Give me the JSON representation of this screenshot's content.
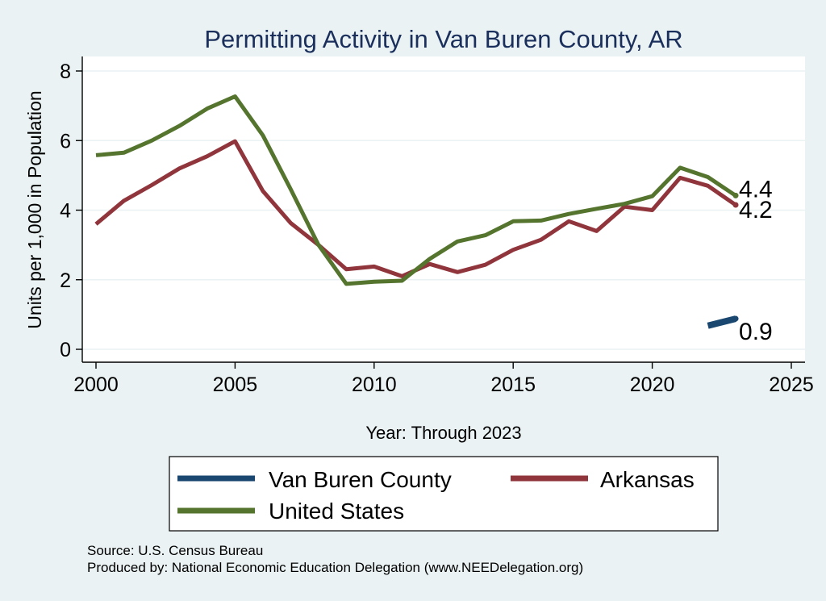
{
  "colors": {
    "background": "#eaf2f3",
    "plot_background": "#ffffff",
    "grid": "#eaf2f3",
    "title": "#1a2f5c",
    "text": "#000000",
    "county": "#1a476f",
    "arkansas": "#90353b",
    "us": "#55752f"
  },
  "chart_data": {
    "type": "line",
    "title": "Permitting Activity in Van Buren County, AR",
    "xlabel": "Year: Through 2023",
    "ylabel": "Units per 1,000 in Population",
    "xlim": [
      2000,
      2025
    ],
    "ylim": [
      0,
      8
    ],
    "xticks": [
      2000,
      2005,
      2010,
      2015,
      2020,
      2025
    ],
    "yticks": [
      0,
      2,
      4,
      6,
      8
    ],
    "grid": true,
    "series": [
      {
        "name": "Van Buren County",
        "color_key": "county",
        "x": [
          2022,
          2023
        ],
        "values": [
          0.68,
          0.88
        ],
        "end_label": "0.9"
      },
      {
        "name": "Arkansas",
        "color_key": "arkansas",
        "x": [
          2000,
          2001,
          2002,
          2003,
          2004,
          2005,
          2006,
          2007,
          2008,
          2009,
          2010,
          2011,
          2012,
          2013,
          2014,
          2015,
          2016,
          2017,
          2018,
          2019,
          2020,
          2021,
          2022,
          2023
        ],
        "values": [
          3.6,
          4.27,
          4.72,
          5.2,
          5.55,
          5.98,
          4.55,
          3.63,
          3.0,
          2.3,
          2.38,
          2.1,
          2.45,
          2.22,
          2.43,
          2.86,
          3.15,
          3.68,
          3.4,
          4.1,
          4.0,
          4.93,
          4.7,
          4.15
        ],
        "end_label": "4.2"
      },
      {
        "name": "United States",
        "color_key": "us",
        "x": [
          2000,
          2001,
          2002,
          2003,
          2004,
          2005,
          2006,
          2007,
          2008,
          2009,
          2010,
          2011,
          2012,
          2013,
          2014,
          2015,
          2016,
          2017,
          2018,
          2019,
          2020,
          2021,
          2022,
          2023
        ],
        "values": [
          5.58,
          5.65,
          6.0,
          6.42,
          6.92,
          7.27,
          6.15,
          4.6,
          3.0,
          1.88,
          1.94,
          1.97,
          2.6,
          3.1,
          3.28,
          3.68,
          3.7,
          3.89,
          4.04,
          4.18,
          4.4,
          5.22,
          4.95,
          4.42
        ],
        "end_label": "4.4"
      }
    ],
    "legend": {
      "placement": "bottom",
      "order": [
        "Van Buren County",
        "Arkansas",
        "United States"
      ]
    }
  },
  "notes": {
    "source": "Source: U.S. Census Bureau",
    "produced_by": "Produced by: National Economic Education Delegation (www.NEEDelegation.org)"
  }
}
